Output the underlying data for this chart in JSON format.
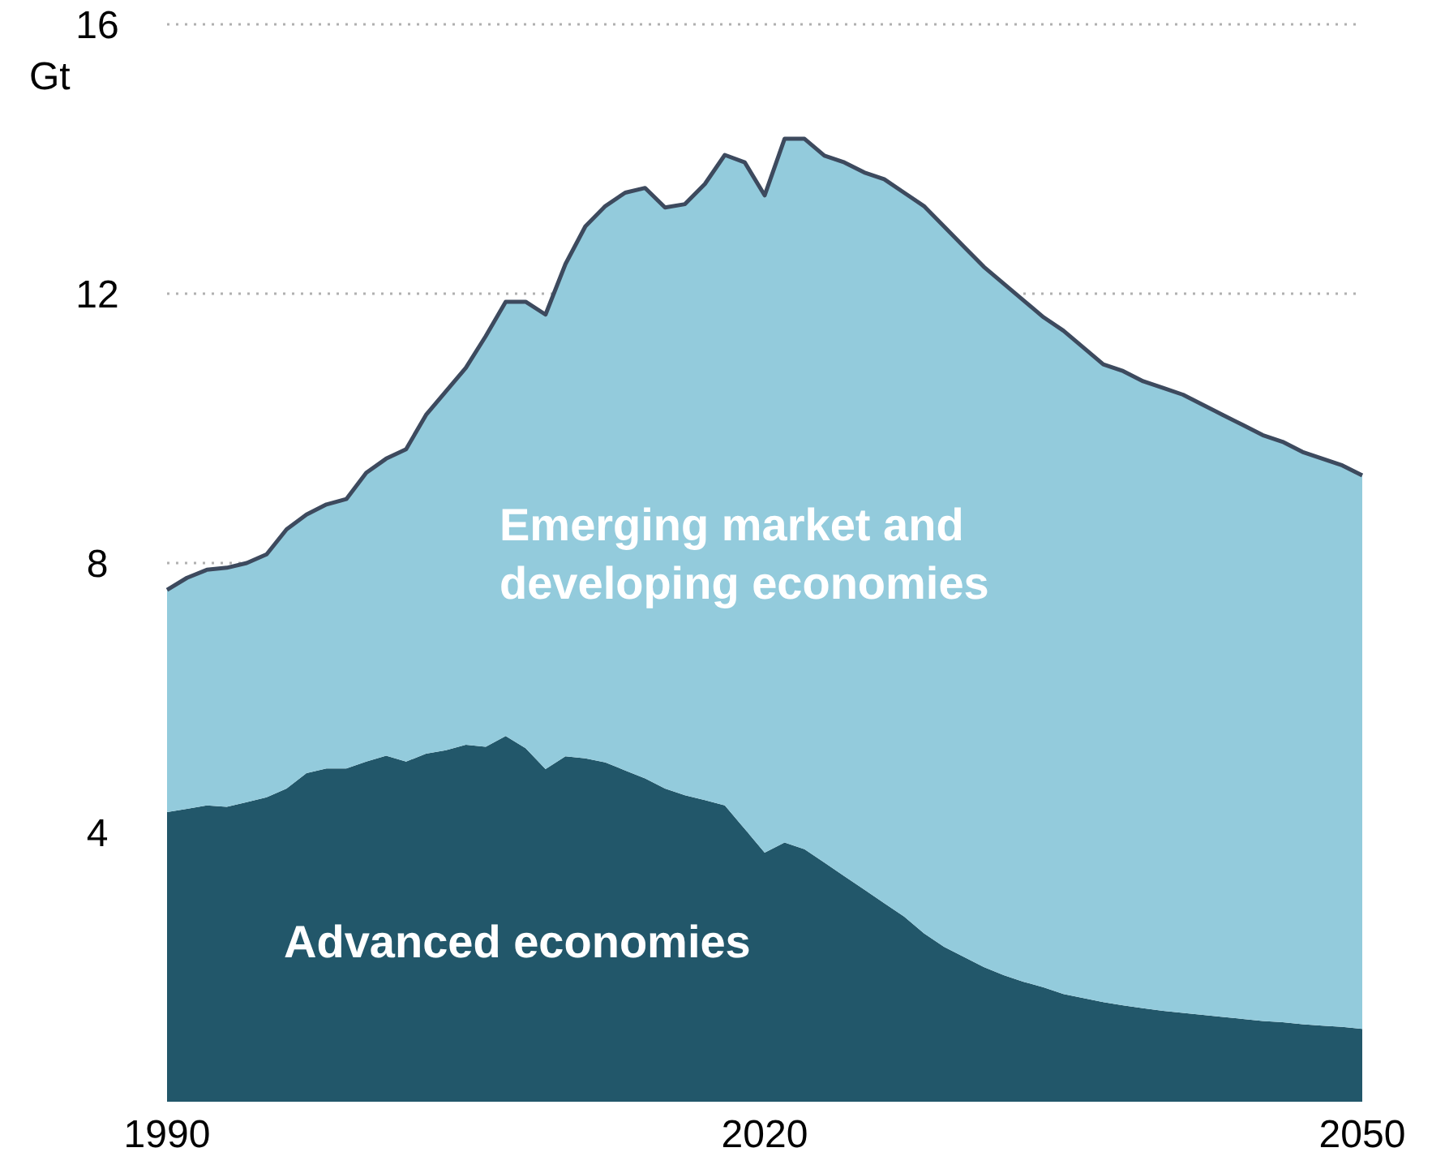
{
  "chart_data": {
    "type": "area",
    "stacked": true,
    "ylabel": "Gt",
    "x": [
      1990,
      1991,
      1992,
      1993,
      1994,
      1995,
      1996,
      1997,
      1998,
      1999,
      2000,
      2001,
      2002,
      2003,
      2004,
      2005,
      2006,
      2007,
      2008,
      2009,
      2010,
      2011,
      2012,
      2013,
      2014,
      2015,
      2016,
      2017,
      2018,
      2019,
      2020,
      2021,
      2022,
      2023,
      2024,
      2025,
      2026,
      2027,
      2028,
      2029,
      2030,
      2031,
      2032,
      2033,
      2034,
      2035,
      2036,
      2037,
      2038,
      2039,
      2040,
      2041,
      2042,
      2043,
      2044,
      2045,
      2046,
      2047,
      2048,
      2049,
      2050
    ],
    "series": [
      {
        "name": "Advanced economies",
        "color": "#22576a",
        "values": [
          4.3,
          4.35,
          4.4,
          4.38,
          4.45,
          4.52,
          4.65,
          4.88,
          4.95,
          4.95,
          5.05,
          5.14,
          5.05,
          5.17,
          5.22,
          5.3,
          5.27,
          5.43,
          5.25,
          4.94,
          5.13,
          5.1,
          5.04,
          4.92,
          4.8,
          4.65,
          4.55,
          4.48,
          4.4,
          4.05,
          3.7,
          3.85,
          3.75,
          3.55,
          3.35,
          3.15,
          2.95,
          2.75,
          2.5,
          2.3,
          2.15,
          2.0,
          1.88,
          1.78,
          1.7,
          1.6,
          1.54,
          1.48,
          1.43,
          1.39,
          1.35,
          1.32,
          1.29,
          1.26,
          1.23,
          1.2,
          1.18,
          1.15,
          1.13,
          1.11,
          1.08
        ]
      },
      {
        "name": "Emerging market and developing economies",
        "color": "#93cbdc",
        "values": [
          3.3,
          3.43,
          3.5,
          3.55,
          3.55,
          3.61,
          3.85,
          3.84,
          3.92,
          4.0,
          4.29,
          4.41,
          4.64,
          5.03,
          5.33,
          5.6,
          6.1,
          6.45,
          6.63,
          6.75,
          7.31,
          7.9,
          8.26,
          8.58,
          8.77,
          8.63,
          8.78,
          9.15,
          9.66,
          9.9,
          9.76,
          10.45,
          10.55,
          10.5,
          10.6,
          10.65,
          10.75,
          10.75,
          10.8,
          10.7,
          10.55,
          10.4,
          10.27,
          10.12,
          9.95,
          9.85,
          9.66,
          9.47,
          9.42,
          9.31,
          9.25,
          9.18,
          9.06,
          8.94,
          8.82,
          8.7,
          8.62,
          8.5,
          8.42,
          8.34,
          8.22
        ]
      }
    ],
    "xlim": [
      1990,
      2050
    ],
    "xticks": [
      1990,
      2020,
      2050
    ],
    "ylim": [
      0,
      16
    ],
    "yticks": [
      4,
      8,
      12,
      16
    ],
    "grid": "y",
    "legend": false
  }
}
